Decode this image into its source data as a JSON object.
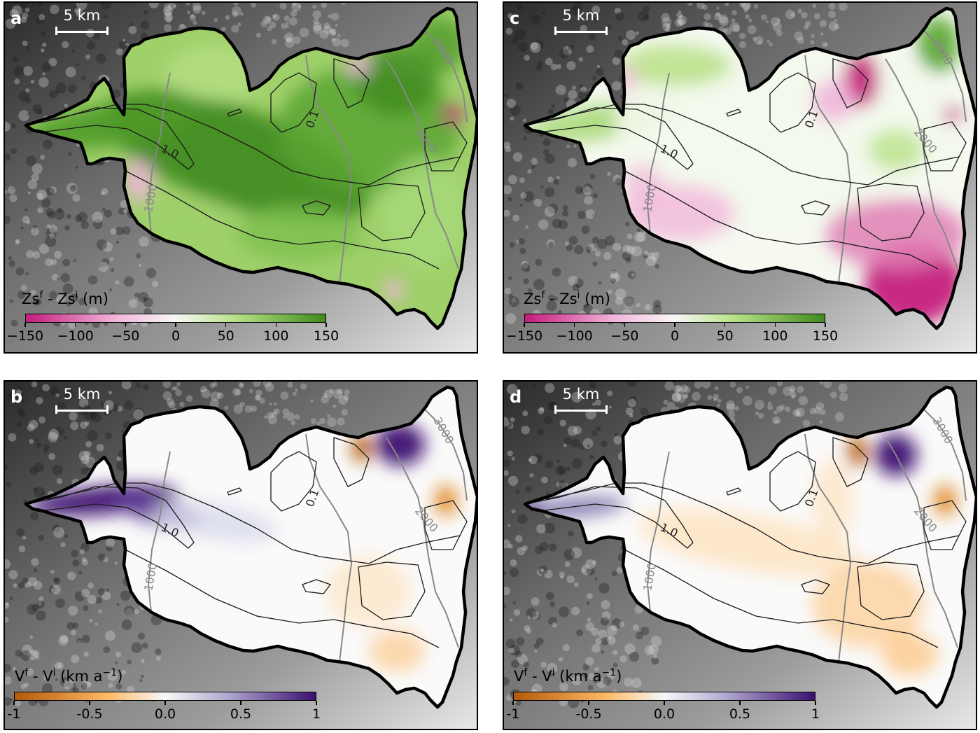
{
  "scale_bar_label": "5 km",
  "contour_labels": {
    "surface_elevation": [
      "1000",
      "2000",
      "3000"
    ],
    "velocity": [
      "0.1",
      "1.0"
    ]
  },
  "colors": {
    "outline": "#000000",
    "contour_elev": "#888888",
    "contour_vel": "#1a1a1a",
    "zs_low": "#c51b7d",
    "zs_mid": "#f7f7f7",
    "zs_high": "#3f8a1e",
    "v_low": "#b35806",
    "v_mid": "#f7f7f7",
    "v_high": "#3b0f70"
  },
  "panels": [
    {
      "id": "a",
      "label": "a",
      "field": "surface-change",
      "colorbar": {
        "title_base": "Zs",
        "title_super1": "f",
        "title_mid": " - Zs",
        "title_super2": "i",
        "title_unit": " (m)",
        "ticks": [
          "−150",
          "−100",
          "−50",
          "0",
          "50",
          "100",
          "150"
        ],
        "range": [
          -150,
          150
        ]
      }
    },
    {
      "id": "b",
      "label": "b",
      "field": "velocity-change",
      "colorbar": {
        "title_base": "V",
        "title_super1": "f",
        "title_mid": " - V",
        "title_super2": "i",
        "title_unit": " (km a",
        "title_super3": "−1",
        "title_end": ")",
        "ticks": [
          "-1",
          "-0.5",
          "0.0",
          "0.5",
          "1"
        ],
        "range": [
          -1,
          1
        ]
      }
    },
    {
      "id": "c",
      "label": "c",
      "field": "surface-change",
      "colorbar": {
        "title_base": "Zs",
        "title_super1": "f",
        "title_mid": " - Zs",
        "title_super2": "i",
        "title_unit": " (m)",
        "ticks": [
          "−150",
          "−100",
          "−50",
          "0",
          "50",
          "100",
          "150"
        ],
        "range": [
          -150,
          150
        ]
      }
    },
    {
      "id": "d",
      "label": "d",
      "field": "velocity-change",
      "colorbar": {
        "title_base": "V",
        "title_super1": "f",
        "title_mid": " - V",
        "title_super2": "i",
        "title_unit": " (km a",
        "title_super3": "−1",
        "title_end": ")",
        "ticks": [
          "-1",
          "-0.5",
          "0.0",
          "0.5",
          "1"
        ],
        "range": [
          -1,
          1
        ]
      }
    }
  ]
}
